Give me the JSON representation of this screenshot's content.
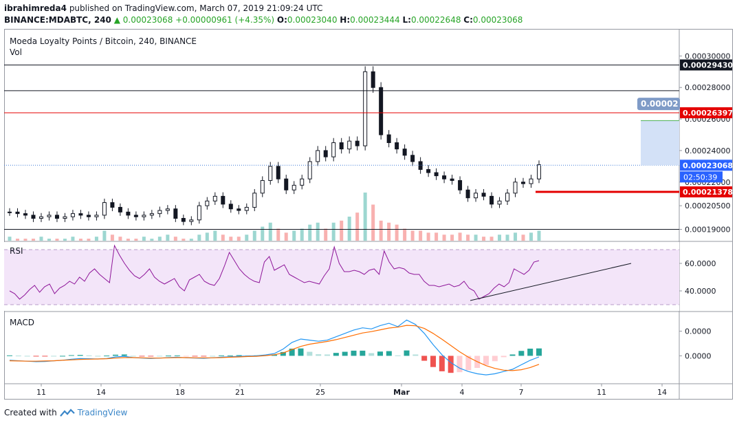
{
  "header": {
    "author": "ibrahimreda4",
    "published_text": "published on TradingView.com, March 07, 2019 21:09:24 UTC",
    "symbol_line": "BINANCE:MDABTC, 240",
    "last": "0.00023068",
    "change": "+0.00000961 (+4.35%)",
    "o_label": "O:",
    "o_value": "0.00023040",
    "h_label": "H:",
    "h_value": "0.00023444",
    "l_label": "L:",
    "l_value": "0.00022648",
    "c_label": "C:",
    "c_value": "0.00023068"
  },
  "footer": {
    "created_with": "Created with",
    "brand": "TradingView"
  },
  "colors": {
    "up": "#26a69a",
    "down": "#ef5350",
    "candle": "#131722",
    "rsi_line": "#8e1599",
    "rsi_bg": "#f3e5f9",
    "macd_line": "#2196f3",
    "signal_line": "#ff6d00",
    "red_line": "#e40000",
    "blue_box": "#d3e1f7"
  },
  "chart_data": [
    {
      "type": "candlestick",
      "title": "Moeda Loyalty Points / Bitcoin, 240, BINANCE",
      "sub_label": "Vol",
      "ylim": [
        0.000185,
        0.000315
      ],
      "y_ticks": [
        "0.00030000",
        "0.00028000",
        "0.00026000",
        "0.00024000",
        "0.00022000",
        "0.00020500",
        "0.00019000"
      ],
      "x_ticks": [
        "11",
        "14",
        "18",
        "21",
        "25",
        "Mar",
        "4",
        "7",
        "11",
        "14"
      ],
      "price_series": [
        0.000201,
        0.0002,
        0.000199,
        0.000197,
        0.000198,
        0.000199,
        0.000197,
        0.000198,
        0.0002,
        0.000199,
        0.000198,
        0.000199,
        0.000207,
        0.000204,
        0.000201,
        0.000199,
        0.000198,
        0.000199,
        0.0002,
        0.000202,
        0.000203,
        0.000197,
        0.000195,
        0.000196,
        0.000205,
        0.000208,
        0.000211,
        0.000206,
        0.000203,
        0.000202,
        0.000204,
        0.000213,
        0.000221,
        0.00023,
        0.000222,
        0.000215,
        0.000218,
        0.000222,
        0.000233,
        0.00024,
        0.000236,
        0.000245,
        0.000241,
        0.000246,
        0.000243,
        0.00029,
        0.00028,
        0.00025,
        0.000245,
        0.000241,
        0.000237,
        0.000233,
        0.000228,
        0.000226,
        0.000224,
        0.000222,
        0.000221,
        0.000215,
        0.00021,
        0.000213,
        0.000211,
        0.000206,
        0.000208,
        0.000213,
        0.00022,
        0.000219,
        0.000222,
        0.000231
      ],
      "levels": [
        {
          "label": "0.00029430",
          "value": 0.0002943,
          "style": "black-line"
        },
        {
          "label": "",
          "value": 0.000278,
          "style": "black-line"
        },
        {
          "label": "0.00026397",
          "value": 0.00026397,
          "style": "red-line"
        },
        {
          "label": "0.00023068",
          "value": 0.00023068,
          "style": "last-price"
        },
        {
          "label": "0.00021378",
          "value": 0.00021378,
          "style": "red-stop"
        },
        {
          "label": "",
          "value": 0.00019,
          "style": "black-line"
        }
      ],
      "countdown": "02:50:39",
      "target_label": "0.00002",
      "volume": [
        2,
        1,
        1,
        1,
        2,
        1,
        1,
        1,
        2,
        1,
        1,
        2,
        5,
        3,
        2,
        1,
        1,
        2,
        1,
        2,
        3,
        2,
        1,
        1,
        3,
        4,
        5,
        3,
        2,
        2,
        3,
        5,
        7,
        9,
        6,
        4,
        5,
        6,
        8,
        9,
        6,
        9,
        10,
        12,
        14,
        24,
        18,
        10,
        9,
        8,
        6,
        5,
        5,
        4,
        4,
        3,
        3,
        4,
        3,
        3,
        2,
        2,
        3,
        3,
        4,
        3,
        4,
        5
      ]
    },
    {
      "type": "line",
      "title": "RSI",
      "y_ticks": [
        "60.0000",
        "40.0000"
      ],
      "ylim": [
        28,
        73
      ],
      "band": [
        70,
        30
      ],
      "values": [
        40,
        38,
        34,
        37,
        41,
        44,
        39,
        43,
        45,
        38,
        42,
        44,
        47,
        45,
        50,
        47,
        53,
        56,
        52,
        49,
        46,
        73,
        66,
        60,
        55,
        51,
        49,
        52,
        56,
        50,
        47,
        45,
        47,
        49,
        43,
        40,
        48,
        50,
        52,
        47,
        45,
        44,
        49,
        58,
        68,
        62,
        56,
        52,
        49,
        47,
        46,
        61,
        65,
        55,
        57,
        59,
        52,
        50,
        48,
        46,
        47,
        46,
        45,
        51,
        56,
        72,
        60,
        54,
        54,
        55,
        54,
        52,
        55,
        56,
        52,
        69,
        61,
        56,
        57,
        56,
        53,
        52,
        52,
        47,
        44,
        44,
        43,
        44,
        45,
        43,
        44,
        47,
        42,
        40,
        34,
        36,
        38,
        42,
        45,
        43,
        46,
        56,
        54,
        52,
        55,
        61,
        62
      ],
      "trendline": [
        [
          0.0,
          0
        ],
        [
          1.0,
          1
        ]
      ]
    },
    {
      "type": "bar",
      "title": "MACD",
      "y_ticks": [
        "0.0000",
        "0.0000"
      ],
      "macd": [
        -2.0,
        -2.2,
        -2.4,
        -2.6,
        -2.5,
        -2.2,
        -2.0,
        -1.5,
        -1.2,
        -1.3,
        -1.4,
        -1.2,
        -0.5,
        -0.2,
        -0.8,
        -1.0,
        -1.2,
        -1.0,
        -0.8,
        -0.6,
        -0.9,
        -1.0,
        -1.1,
        -0.9,
        -0.6,
        -0.4,
        -0.2,
        -0.1,
        0.0,
        0.4,
        1.0,
        3.0,
        6.0,
        7.5,
        7.0,
        6.5,
        7.0,
        8.5,
        10.0,
        11.5,
        12.5,
        12.0,
        13.5,
        14.5,
        13.0,
        16.0,
        14.0,
        10.0,
        5.0,
        0.5,
        -3.0,
        -5.5,
        -7.0,
        -8.0,
        -8.5,
        -8.0,
        -7.0,
        -6.0,
        -4.0,
        -2.0,
        -0.5
      ],
      "signal": [
        -2.2,
        -2.3,
        -2.4,
        -2.4,
        -2.3,
        -2.2,
        -2.0,
        -1.8,
        -1.6,
        -1.5,
        -1.4,
        -1.3,
        -1.0,
        -0.8,
        -0.8,
        -0.9,
        -1.0,
        -1.0,
        -0.9,
        -0.8,
        -0.8,
        -0.9,
        -0.9,
        -0.9,
        -0.8,
        -0.6,
        -0.5,
        -0.3,
        -0.2,
        0.1,
        0.5,
        1.3,
        2.8,
        4.2,
        5.2,
        5.8,
        6.4,
        7.2,
        8.2,
        9.2,
        10.2,
        10.8,
        11.6,
        12.4,
        12.8,
        13.6,
        13.4,
        12.2,
        10.0,
        7.4,
        4.6,
        1.8,
        -0.6,
        -2.6,
        -4.4,
        -5.6,
        -6.4,
        -6.6,
        -6.2,
        -5.2,
        -3.8
      ],
      "histogram": [
        0.2,
        0.1,
        0.0,
        -0.2,
        -0.2,
        0.0,
        0.0,
        0.3,
        0.4,
        0.2,
        0.0,
        0.1,
        0.5,
        0.6,
        0.0,
        -0.1,
        -0.2,
        0.0,
        0.1,
        0.2,
        -0.1,
        -0.1,
        -0.2,
        0.0,
        0.2,
        0.2,
        0.3,
        0.2,
        0.2,
        0.3,
        0.5,
        1.7,
        3.2,
        3.3,
        1.8,
        0.7,
        0.6,
        1.3,
        1.8,
        2.3,
        2.3,
        1.2,
        1.9,
        2.1,
        0.2,
        2.4,
        0.6,
        -2.2,
        -5.0,
        -6.9,
        -7.6,
        -7.3,
        -6.4,
        -5.4,
        -4.1,
        -2.4,
        -0.6,
        0.6,
        2.2,
        3.2,
        3.3
      ]
    }
  ]
}
